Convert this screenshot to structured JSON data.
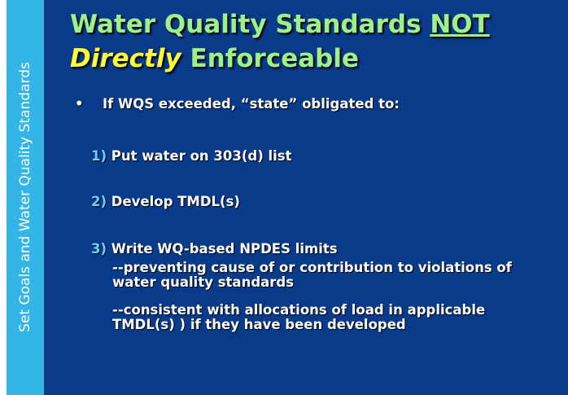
{
  "sidebar": "Set Goals and Water Quality Standards",
  "title": {
    "line1_a": "Water Quality Standards ",
    "line1_b": "NOT",
    "line2_a": "Directly",
    "line2_b": " Enforceable"
  },
  "bullet": "If WQS exceeded, “state” obligated to:",
  "items": [
    {
      "num": "1)",
      "text": "Put water on 303(d) list"
    },
    {
      "num": "2)",
      "text": "Develop TMDL(s)"
    },
    {
      "num": "3)",
      "text": "Write WQ-based NPDES limits"
    }
  ],
  "subitems": [
    "--preventing cause of or contribution to violations of water quality standards",
    "--consistent with allocations of load in applicable TMDL(s) ) if they have been developed"
  ]
}
